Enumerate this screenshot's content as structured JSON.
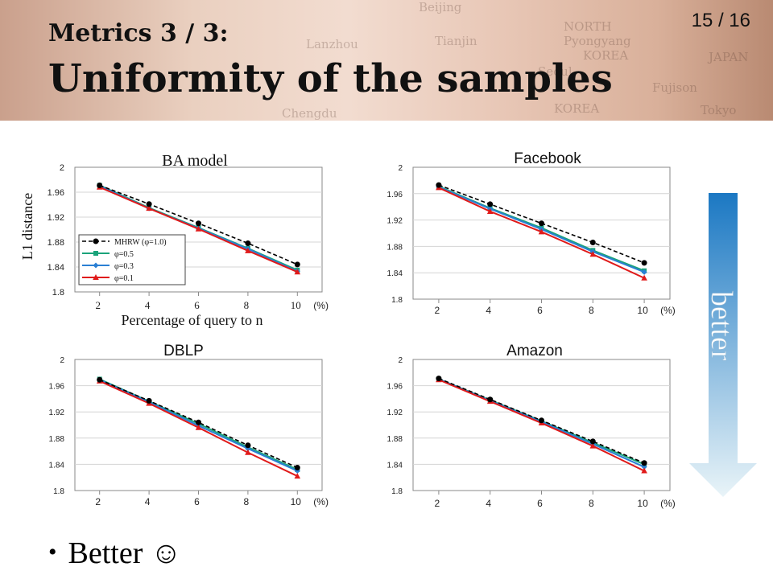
{
  "header": {
    "subtitle": "Metrics 3 / 3:",
    "title": "Uniformity of the samples",
    "page": "15 / 16"
  },
  "better_arrow": {
    "label": "better",
    "color_top": "#1b78c3",
    "color_bottom": "#e9f4f8"
  },
  "bullet": {
    "text": "Better",
    "icon": "smiley-icon",
    "glyph": "☺"
  },
  "legend": [
    {
      "label": "MHRW (φ=1.0)",
      "color": "#000000",
      "marker": "circle",
      "dashed": true
    },
    {
      "label": "φ=0.5",
      "color": "#1aa37a",
      "marker": "square",
      "dashed": false
    },
    {
      "label": "φ=0.3",
      "color": "#2a7fd4",
      "marker": "diamond",
      "dashed": false
    },
    {
      "label": "φ=0.1",
      "color": "#e01a1a",
      "marker": "triangle",
      "dashed": false
    }
  ],
  "chart_data": [
    {
      "type": "line",
      "title": "BA model",
      "xlabel": "Percentage of query to n",
      "ylabel": "L1 distance",
      "x": [
        2,
        4,
        6,
        8,
        10
      ],
      "x_ticks": [
        "2",
        "4",
        "6",
        "8",
        "10"
      ],
      "x_unit": "(%)",
      "y_ticks": [
        "1.8",
        "1.84",
        "1.88",
        "1.92",
        "1.96",
        "2"
      ],
      "ylim": [
        1.8,
        2.0
      ],
      "grid": true,
      "legend": "inside-bottom-left",
      "series": [
        {
          "name": "MHRW (φ=1.0)",
          "values": [
            1.971,
            1.941,
            1.91,
            1.878,
            1.844
          ]
        },
        {
          "name": "φ=0.5",
          "values": [
            1.971,
            1.935,
            1.903,
            1.87,
            1.835
          ]
        },
        {
          "name": "φ=0.3",
          "values": [
            1.97,
            1.934,
            1.902,
            1.869,
            1.833
          ]
        },
        {
          "name": "φ=0.1",
          "values": [
            1.968,
            1.934,
            1.901,
            1.866,
            1.832
          ]
        }
      ]
    },
    {
      "type": "line",
      "title": "Facebook",
      "xlabel": "",
      "ylabel": "",
      "x": [
        2,
        4,
        6,
        8,
        10
      ],
      "x_ticks": [
        "2",
        "4",
        "6",
        "8",
        "10"
      ],
      "x_unit": "(%)",
      "y_ticks": [
        "1.8",
        "1.84",
        "1.88",
        "1.92",
        "1.96",
        "2"
      ],
      "ylim": [
        1.8,
        2.0
      ],
      "grid": true,
      "legend": "none",
      "series": [
        {
          "name": "MHRW (φ=1.0)",
          "values": [
            1.973,
            1.944,
            1.915,
            1.886,
            1.855
          ]
        },
        {
          "name": "φ=0.5",
          "values": [
            1.971,
            1.938,
            1.908,
            1.874,
            1.843
          ]
        },
        {
          "name": "φ=0.3",
          "values": [
            1.97,
            1.937,
            1.906,
            1.872,
            1.841
          ]
        },
        {
          "name": "φ=0.1",
          "values": [
            1.969,
            1.933,
            1.902,
            1.868,
            1.832
          ]
        }
      ]
    },
    {
      "type": "line",
      "title": "DBLP",
      "xlabel": "",
      "ylabel": "",
      "x": [
        2,
        4,
        6,
        8,
        10
      ],
      "x_ticks": [
        "2",
        "4",
        "6",
        "8",
        "10"
      ],
      "x_unit": "(%)",
      "y_ticks": [
        "1.8",
        "1.84",
        "1.88",
        "1.92",
        "1.96",
        "2"
      ],
      "ylim": [
        1.8,
        2.0
      ],
      "grid": true,
      "legend": "none",
      "series": [
        {
          "name": "MHRW (φ=1.0)",
          "values": [
            1.969,
            1.937,
            1.904,
            1.869,
            1.835
          ]
        },
        {
          "name": "φ=0.5",
          "values": [
            1.97,
            1.936,
            1.902,
            1.866,
            1.832
          ]
        },
        {
          "name": "φ=0.3",
          "values": [
            1.969,
            1.935,
            1.899,
            1.864,
            1.83
          ]
        },
        {
          "name": "φ=0.1",
          "values": [
            1.967,
            1.933,
            1.896,
            1.858,
            1.822
          ]
        }
      ]
    },
    {
      "type": "line",
      "title": "Amazon",
      "xlabel": "",
      "ylabel": "",
      "x": [
        2,
        4,
        6,
        8,
        10
      ],
      "x_ticks": [
        "2",
        "4",
        "6",
        "8",
        "10"
      ],
      "x_unit": "(%)",
      "y_ticks": [
        "1.8",
        "1.84",
        "1.88",
        "1.92",
        "1.96",
        "2"
      ],
      "ylim": [
        1.8,
        2.0
      ],
      "grid": true,
      "legend": "none",
      "series": [
        {
          "name": "MHRW (φ=1.0)",
          "values": [
            1.971,
            1.939,
            1.907,
            1.875,
            1.842
          ]
        },
        {
          "name": "φ=0.5",
          "values": [
            1.97,
            1.938,
            1.906,
            1.873,
            1.84
          ]
        },
        {
          "name": "φ=0.3",
          "values": [
            1.97,
            1.937,
            1.905,
            1.871,
            1.836
          ]
        },
        {
          "name": "φ=0.1",
          "values": [
            1.969,
            1.936,
            1.903,
            1.868,
            1.83
          ]
        }
      ]
    }
  ]
}
